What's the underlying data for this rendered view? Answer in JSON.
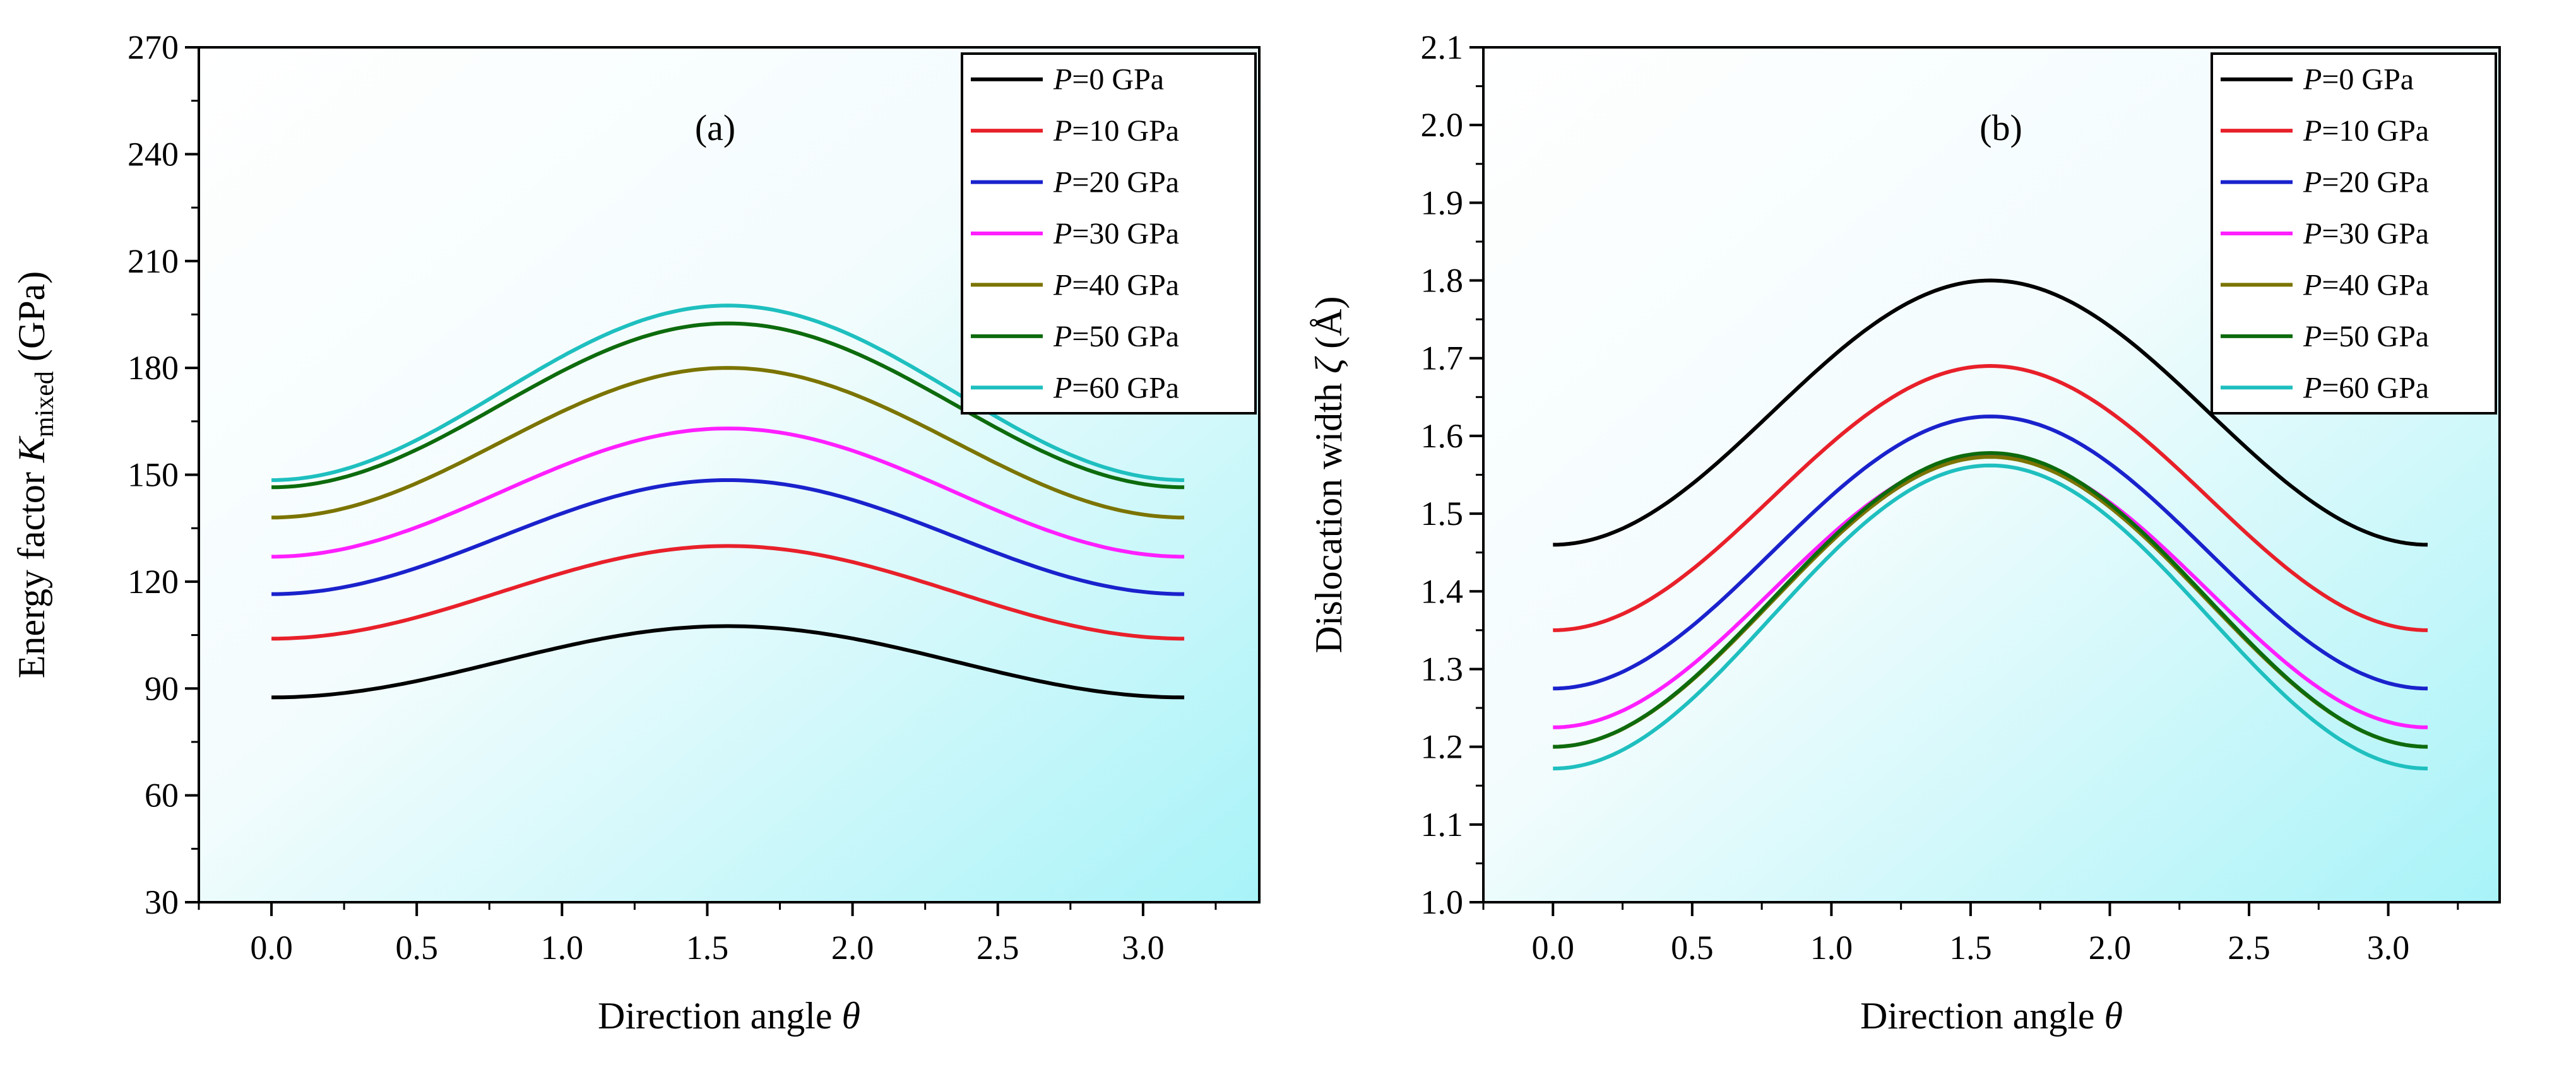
{
  "chart_data": [
    {
      "panel": "(a)",
      "type": "line",
      "xlabel": "Direction angle",
      "xlabel_symbol": "θ",
      "ylabel": "Energy factor ",
      "ylabel_symbol": "K",
      "ylabel_subscript": "mixed",
      "ylabel_unit": " (GPa)",
      "xlim": [
        -0.25,
        3.4
      ],
      "ylim": [
        30,
        270
      ],
      "xticks": [
        "0.0",
        "0.5",
        "1.0",
        "1.5",
        "2.0",
        "2.5",
        "3.0"
      ],
      "yticks": [
        "30",
        "60",
        "90",
        "120",
        "150",
        "180",
        "210",
        "240",
        "270"
      ],
      "legend_position": "top-right",
      "x_range": [
        0,
        3.1416
      ],
      "series": [
        {
          "name": "P",
          "label_suffix": "=0 GPa",
          "color": "#000000",
          "min": 87.5,
          "max": 107.5
        },
        {
          "name": "P",
          "label_suffix": "=10 GPa",
          "color": "#e8202a",
          "min": 104,
          "max": 130
        },
        {
          "name": "P",
          "label_suffix": "=20 GPa",
          "color": "#1a22cc",
          "min": 116.5,
          "max": 148.5
        },
        {
          "name": "P",
          "label_suffix": "=30 GPa",
          "color": "#ff1fff",
          "min": 127,
          "max": 163
        },
        {
          "name": "P",
          "label_suffix": "=40 GPa",
          "color": "#7b7400",
          "min": 138,
          "max": 180
        },
        {
          "name": "P",
          "label_suffix": "=50 GPa",
          "color": "#0d6b0d",
          "min": 146.5,
          "max": 192.5
        },
        {
          "name": "P",
          "label_suffix": "=60 GPa",
          "color": "#1fbfbf",
          "min": 148.5,
          "max": 197.5
        }
      ]
    },
    {
      "panel": "(b)",
      "type": "line",
      "xlabel": "Direction angle",
      "xlabel_symbol": "θ",
      "ylabel": "Dislocation width ",
      "ylabel_symbol": "ζ",
      "ylabel_unit": " (Å)",
      "xlim": [
        -0.25,
        3.4
      ],
      "ylim": [
        1.0,
        2.1
      ],
      "xticks": [
        "0.0",
        "0.5",
        "1.0",
        "1.5",
        "2.0",
        "2.5",
        "3.0"
      ],
      "yticks": [
        "1.0",
        "1.1",
        "1.2",
        "1.3",
        "1.4",
        "1.5",
        "1.6",
        "1.7",
        "1.8",
        "1.9",
        "2.0",
        "2.1"
      ],
      "legend_position": "top-right",
      "x_range": [
        0,
        3.1416
      ],
      "series": [
        {
          "name": "P",
          "label_suffix": "=0 GPa",
          "color": "#000000",
          "min": 1.46,
          "max": 1.8
        },
        {
          "name": "P",
          "label_suffix": "=10 GPa",
          "color": "#e8202a",
          "min": 1.35,
          "max": 1.69
        },
        {
          "name": "P",
          "label_suffix": "=20 GPa",
          "color": "#1a22cc",
          "min": 1.275,
          "max": 1.625
        },
        {
          "name": "P",
          "label_suffix": "=30 GPa",
          "color": "#ff1fff",
          "min": 1.225,
          "max": 1.575
        },
        {
          "name": "P",
          "label_suffix": "=40 GPa",
          "color": "#7b7400",
          "min": 1.2,
          "max": 1.573
        },
        {
          "name": "P",
          "label_suffix": "=50 GPa",
          "color": "#0d6b0d",
          "min": 1.2,
          "max": 1.578
        },
        {
          "name": "P",
          "label_suffix": "=60 GPa",
          "color": "#1fbfbf",
          "min": 1.172,
          "max": 1.562
        }
      ]
    }
  ]
}
